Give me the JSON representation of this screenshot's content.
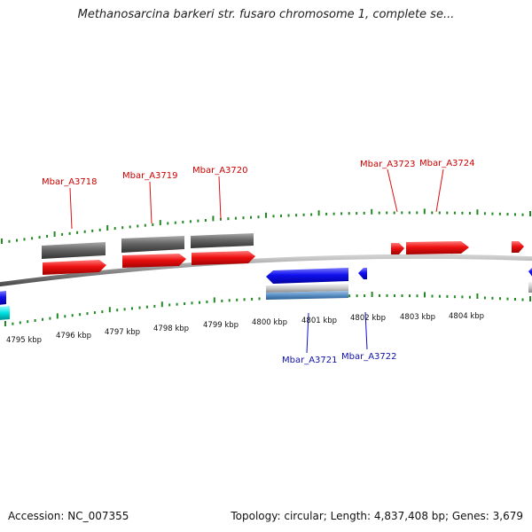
{
  "title": "Methanosarcina barkeri str. fusaro chromosome 1, complete se...",
  "footer": {
    "accession": "Accession: NC_007355",
    "summary": "Topology: circular; Length: 4,837,408 bp; Genes: 3,679"
  },
  "colors": {
    "forward_gene": "#ee1111",
    "reverse_gene": "#1111ee",
    "cds_grey": "#666666",
    "tick": "#228822",
    "backbone": "#888888"
  },
  "axis": {
    "tick_labels": [
      "4795 kbp",
      "4796 kbp",
      "4797 kbp",
      "4798 kbp",
      "4799 kbp",
      "4800 kbp",
      "4801 kbp",
      "4802 kbp",
      "4803 kbp",
      "4804 kbp"
    ]
  },
  "genes": {
    "forward_labels": [
      "Mbar_A3718",
      "Mbar_A3719",
      "Mbar_A3720",
      "Mbar_A3723",
      "Mbar_A3724"
    ],
    "reverse_labels": [
      "Mbar_A3721",
      "Mbar_A3722"
    ]
  }
}
